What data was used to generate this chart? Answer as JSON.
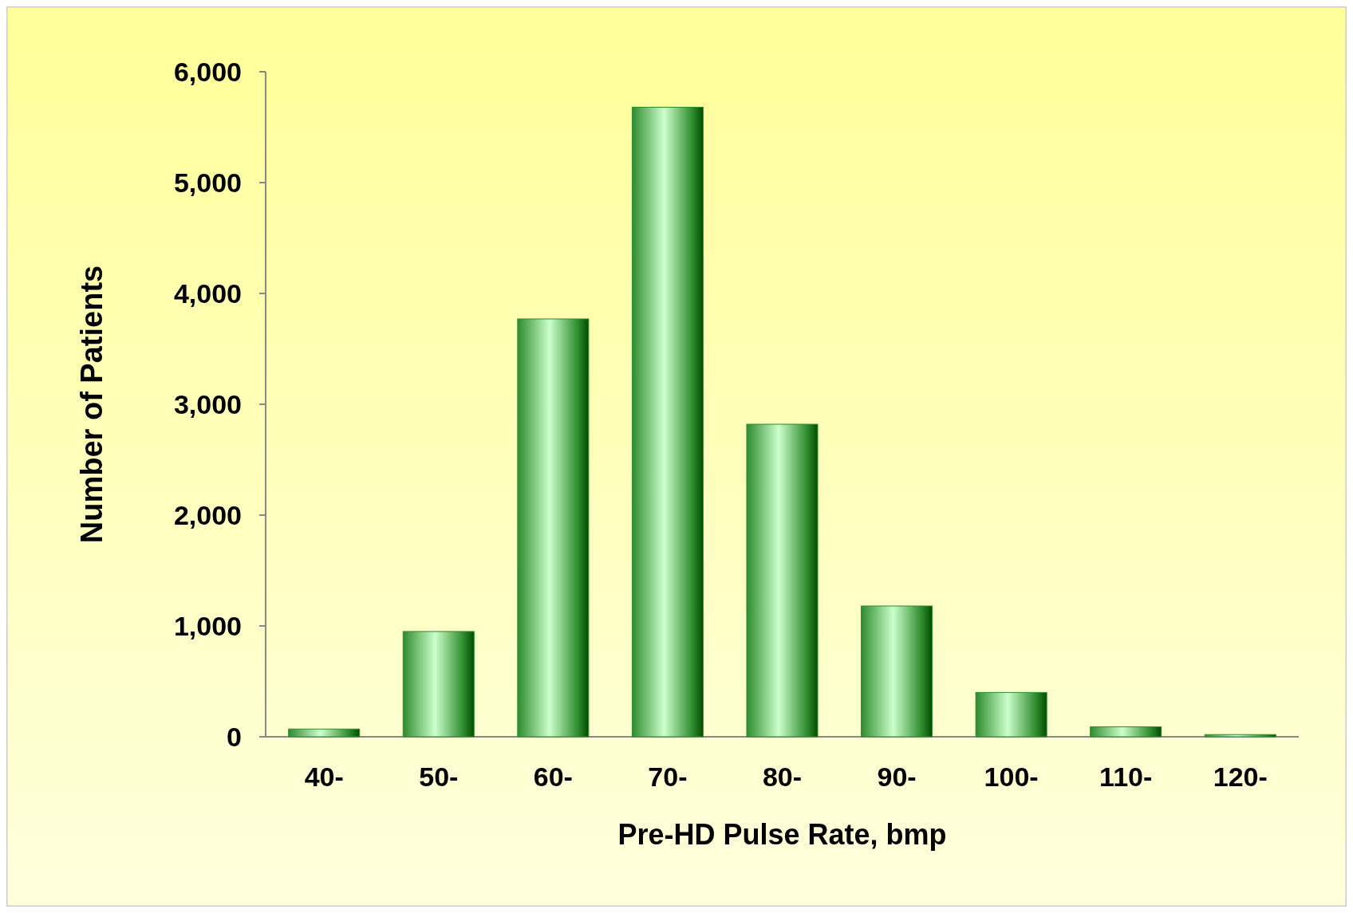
{
  "chart_data": {
    "type": "bar",
    "xlabel": "Pre-HD Pulse Rate, bmp",
    "ylabel": "Number of Patients",
    "categories": [
      "40-",
      "50-",
      "60-",
      "70-",
      "80-",
      "90-",
      "100-",
      "110-",
      "120-"
    ],
    "values": [
      70,
      950,
      3770,
      5680,
      2820,
      1180,
      400,
      90,
      20
    ],
    "color": "#2e8b2e",
    "ylim": [
      0,
      6000
    ],
    "yticks": [
      {
        "value": 0,
        "label": "0"
      },
      {
        "value": 1000,
        "label": "1,000"
      },
      {
        "value": 2000,
        "label": "2,000"
      },
      {
        "value": 3000,
        "label": "3,000"
      },
      {
        "value": 4000,
        "label": "4,000"
      },
      {
        "value": 5000,
        "label": "5,000"
      },
      {
        "value": 6000,
        "label": "6,000"
      }
    ],
    "grid": false
  }
}
